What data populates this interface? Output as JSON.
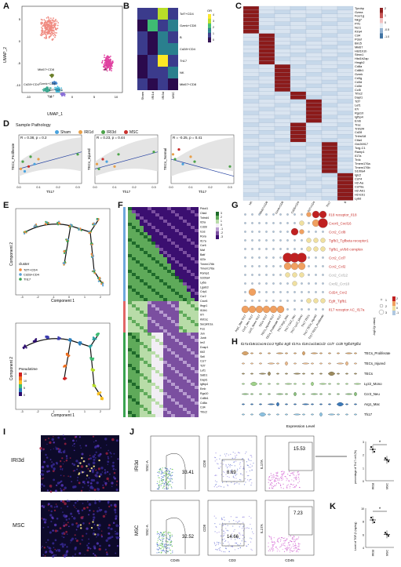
{
  "panel_letters": [
    "A",
    "B",
    "C",
    "D",
    "E",
    "F",
    "G",
    "H",
    "I",
    "J",
    "K"
  ],
  "A": {
    "xlabel": "UMAP_1",
    "ylabel": "UMAP_2",
    "xticks": [
      "-10",
      "-5",
      "0",
      "5",
      "10"
    ],
    "yticks": [
      "-10",
      "-5",
      "0",
      "5"
    ],
    "clusters": [
      "NK",
      "Mki67+CD8",
      "Cd28+CD4",
      "Gzmk+CD8",
      "B",
      "Tcf7+CD4",
      "Th17"
    ]
  },
  "B": {
    "legend_title": "OR",
    "legend_ticks": [
      "4",
      "3",
      "2",
      "1",
      "0"
    ],
    "rows": [
      "Tcf7+CD4",
      "Gzmk+CD8",
      "B",
      "Cd28+CD4",
      "Th17",
      "NK",
      "Mki67+CD8"
    ],
    "cols": [
      "Sham",
      "IRI1d",
      "IRI3d",
      "MSC"
    ],
    "values": [
      [
        0.6,
        0.6,
        3.0,
        0.6
      ],
      [
        0.2,
        2.4,
        0.4,
        1.2
      ],
      [
        1.0,
        0.2,
        1.8,
        0.6
      ],
      [
        0.6,
        0.3,
        1.6,
        1.2
      ],
      [
        0.2,
        1.0,
        3.8,
        0.6
      ],
      [
        0.2,
        0.6,
        0.6,
        1.6
      ],
      [
        0.4,
        0.2,
        0.6,
        0.3
      ]
    ]
  },
  "C": {
    "legend_ticks": [
      "2",
      "1",
      "0",
      "-0.5",
      "-1.0"
    ],
    "cols": [
      "NK",
      "Mki67+CD8",
      "Gzmk+CD8",
      "Cd28+CD4",
      "Tcf7+CD4",
      "Th17",
      "B"
    ],
    "genes": [
      "Tyrobp",
      "Gzma",
      "Fcer1g",
      "Nkg7",
      "Prf1",
      "Ncr1",
      "Klra4",
      "Cd4",
      "Pclaf",
      "Birc5",
      "Mki67",
      "Hist1h1b",
      "Stmn1",
      "Hist1h2ap",
      "Hmgb2",
      "Cd8a",
      "Cd8b1",
      "Gzmk",
      "Cd3g",
      "Cd3d",
      "Cd3e",
      "Ccl5",
      "Trbc2",
      "Dapl1",
      "Tcf7",
      "Lef1",
      "Il7r",
      "Rgs10",
      "Igfbp4",
      "Emb",
      "Trac",
      "Tnfrsf4",
      "Cd28",
      "Tnfrsf18",
      "Ctla4",
      "Gm26917",
      "Tcrg-C1",
      "Ramp1",
      "Il17a",
      "Trdc",
      "Tmem176a",
      "Tmem176b",
      "S100a4",
      "Iglc2",
      "Cd74",
      "H2-Aa",
      "Cd79a",
      "H2-Ab1",
      "H2-Eb1",
      "Ly6d"
    ],
    "blocks": [
      [
        0,
        7,
        0
      ],
      [
        7,
        15,
        1
      ],
      [
        15,
        22,
        2
      ],
      [
        22,
        24,
        3
      ],
      [
        24,
        30,
        4
      ],
      [
        30,
        35,
        3
      ],
      [
        35,
        43,
        5
      ],
      [
        43,
        50,
        6
      ]
    ]
  },
  "D": {
    "legend_title": "Sample Pathology",
    "groups": [
      {
        "name": "Sham",
        "color": "#4aa3df"
      },
      {
        "name": "IRI1d",
        "color": "#e8a04a"
      },
      {
        "name": "IRI3d",
        "color": "#4da34a"
      },
      {
        "name": "MSC",
        "color": "#c9302c"
      }
    ],
    "xlabel": "Th17",
    "xticks": [
      "0.0",
      "0.1",
      "0.2",
      "0.3"
    ],
    "plots": [
      {
        "stat": "R = 0.38, p = 0.2",
        "ylabel": "TECs_Proliferate",
        "points": [
          [
            0.01,
            0.3,
            1
          ],
          [
            0.02,
            0.45,
            2
          ],
          [
            0.05,
            0.35,
            3
          ],
          [
            0.08,
            0.4,
            0
          ],
          [
            0.1,
            0.5,
            1
          ],
          [
            0.03,
            0.25,
            0
          ],
          [
            0.06,
            0.55,
            2
          ],
          [
            0.3,
            0.6,
            2
          ]
        ]
      },
      {
        "stat": "R = 0.23, p = 0.44",
        "ylabel": "TECs_Injured",
        "points": [
          [
            0.01,
            0.4,
            1
          ],
          [
            0.02,
            0.3,
            2
          ],
          [
            0.04,
            0.5,
            3
          ],
          [
            0.06,
            0.45,
            0
          ],
          [
            0.1,
            0.35,
            1
          ],
          [
            0.12,
            0.6,
            2
          ],
          [
            0.3,
            0.65,
            2
          ]
        ]
      },
      {
        "stat": "R = -0.25, p = 0.41",
        "ylabel": "TECs_Normal",
        "points": [
          [
            0.01,
            0.6,
            1
          ],
          [
            0.02,
            0.5,
            2
          ],
          [
            0.04,
            0.7,
            3
          ],
          [
            0.06,
            0.4,
            0
          ],
          [
            0.1,
            0.55,
            1
          ],
          [
            0.12,
            0.45,
            2
          ],
          [
            0.3,
            0.35,
            2
          ]
        ]
      }
    ]
  },
  "E": {
    "xlabel": "Component 1",
    "ylabel": "Component 2",
    "legend_title": "cluster",
    "clusters": [
      {
        "name": "Tcf7+CD4",
        "color": "#f08a3a"
      },
      {
        "name": "Cd28+CD4",
        "color": "#5aa0d6"
      },
      {
        "name": "Th17",
        "color": "#3aa350"
      }
    ],
    "pseudotime_title": "Pseudotime",
    "pseudotime_ticks": [
      "0",
      "5",
      "10",
      "15"
    ],
    "xticks": [
      "-3",
      "-2",
      "-1",
      "0",
      "1",
      "2"
    ]
  },
  "F": {
    "legend_ticks": [
      "3",
      "2",
      "1",
      "0",
      "-1",
      "-2",
      "-3"
    ],
    "genes": [
      "Pdcd1",
      "Ctla4",
      "Tnfrsf4",
      "Il2ra",
      "Cd28",
      "Icos",
      "Rora",
      "Il17a",
      "Ccr6",
      "Maf",
      "Batf",
      "Il23r",
      "Tmem176b",
      "Tmem176a",
      "Ramp1",
      "S100a4",
      "Ly6a",
      "Lgals3",
      "Crip1",
      "Ccr2",
      "Cxcr6",
      "Ifngr1",
      "Il18r1",
      "Il7r",
      "Klrb1c",
      "Serpinb1a",
      "Fos",
      "Jun",
      "Junb",
      "Ier2",
      "Dusp1",
      "Klf2",
      "Sell",
      "Ccr7",
      "Tcf7",
      "Lef1",
      "Satb1",
      "Dapl1",
      "Igfbp4",
      "Emb",
      "Rgs10",
      "Cd8b1",
      "Cd8a",
      "Cd4",
      "Trbc2"
    ],
    "side_colors": [
      "#6fa8dc",
      "#e06666",
      "#3aa350"
    ]
  },
  "G": {
    "pairs": [
      "Il18 receptor_Il18",
      "Cxcr6_Cxcl16",
      "Ccr2_Ccl8",
      "Tgfb3_Tgfbeta receptor1",
      "Tgfb1_aVb8 complex",
      "Ccr2_Ccl7",
      "Ccr2_Ccl2",
      "Ccr2_Ccl12",
      "Cxcl2_Ccr10",
      "Cd24_Ccr2",
      "Egfr_Tgfb1",
      "Il17 receptor AC_Il17a"
    ],
    "pair_colors": [
      "#c9302c",
      "#c9302c",
      "#c9302c",
      "#c9302c",
      "#c9302c",
      "#c9302c",
      "#c9302c",
      "#999999",
      "#999999",
      "#c9302c",
      "#c9302c",
      "#c9302c"
    ],
    "cols": [
      "Arg1_Mac Th17",
      "Ccr2_Neu Th17",
      "Lyz2_Mono Th17",
      "TECs Th17",
      "TECs_Injured Th17",
      "TECs_Proliferate Th17",
      "Th17 Arg1_Mac",
      "Th17 Ccr2_Neu",
      "Th17 Lyz2_Mono",
      "Th17 TECs",
      "Th17 TECs_Injured",
      "Th17 TECs_Proliferate"
    ],
    "size_legend_title": "-log10(p value)",
    "size_legend": [
      "1",
      "2",
      "3"
    ],
    "color_legend_title": "Scaled exp",
    "color_ticks": [
      "2",
      "1",
      "0",
      "-1"
    ],
    "sizes": [
      [
        0,
        0,
        0,
        0,
        0,
        0,
        0,
        0,
        0,
        1,
        2,
        2
      ],
      [
        0,
        0,
        0,
        0,
        0,
        0,
        0,
        0,
        1,
        0,
        2,
        3
      ],
      [
        0,
        0,
        0,
        0,
        0,
        0,
        0,
        2,
        1,
        0,
        0,
        0
      ],
      [
        0,
        0,
        0,
        0,
        0,
        0,
        0,
        0,
        0,
        1,
        1,
        1
      ],
      [
        0,
        0,
        0,
        0,
        0,
        0,
        0,
        0,
        0,
        1,
        1,
        1
      ],
      [
        0,
        0,
        0,
        0,
        0,
        0,
        3,
        3,
        3,
        0,
        0,
        0
      ],
      [
        0,
        0,
        0,
        0,
        0,
        0,
        2,
        2,
        2,
        0,
        0,
        0
      ],
      [
        0,
        0,
        0,
        0,
        0,
        0,
        1,
        1,
        1,
        0,
        0,
        0
      ],
      [
        0,
        0,
        0,
        0,
        0,
        0,
        0,
        1,
        0,
        0,
        0,
        0
      ],
      [
        0,
        2,
        0,
        0,
        0,
        0,
        0,
        0,
        0,
        0,
        0,
        0
      ],
      [
        0,
        0,
        0,
        0,
        0,
        0,
        0,
        0,
        0,
        1,
        1,
        1
      ],
      [
        2,
        2,
        2,
        2,
        2,
        2,
        0,
        0,
        0,
        0,
        0,
        0
      ]
    ],
    "colors": [
      [
        -1,
        -1,
        -1,
        -1,
        -1,
        -1,
        -1,
        -1,
        -1,
        1,
        2,
        2
      ],
      [
        -1,
        -1,
        -1,
        -1,
        -1,
        -1,
        -1,
        -1,
        0,
        -1,
        1,
        2
      ],
      [
        -1,
        -1,
        -1,
        -1,
        -1,
        -1,
        -1,
        2,
        1,
        -1,
        -1,
        -1
      ],
      [
        -1,
        -1,
        -1,
        -1,
        -1,
        -1,
        -1,
        -1,
        -1,
        0,
        0,
        0
      ],
      [
        -1,
        -1,
        -1,
        -1,
        -1,
        -1,
        -1,
        -1,
        -1,
        0,
        0,
        0
      ],
      [
        -1,
        -1,
        -1,
        -1,
        -1,
        -1,
        2,
        2,
        2,
        -1,
        -1,
        -1
      ],
      [
        -1,
        -1,
        -1,
        -1,
        -1,
        -1,
        1,
        1,
        1,
        -1,
        -1,
        -1
      ],
      [
        -1,
        -1,
        -1,
        -1,
        -1,
        -1,
        0,
        0,
        0,
        -1,
        -1,
        -1
      ],
      [
        -1,
        -1,
        -1,
        -1,
        -1,
        -1,
        -1,
        0,
        -1,
        -1,
        -1,
        -1
      ],
      [
        -1,
        1,
        -1,
        -1,
        -1,
        -1,
        -1,
        -1,
        -1,
        -1,
        -1,
        -1
      ],
      [
        -1,
        -1,
        -1,
        -1,
        -1,
        -1,
        -1,
        -1,
        -1,
        0,
        0,
        0
      ],
      [
        1,
        1,
        1,
        1,
        1,
        1,
        -1,
        -1,
        -1,
        -1,
        -1,
        -1
      ]
    ]
  },
  "H": {
    "genes": [
      "Il17a",
      "Il18r1",
      "Cxcr6",
      "Ccr2",
      "Tgfb1",
      "Egfr",
      "Il17ra",
      "Il18",
      "Cxcl16",
      "Ccl2",
      "Ccl7",
      "Ccl8",
      "Tgfb3",
      "Tgfb1"
    ],
    "cells": [
      "TECs_Proliferate",
      "TECs_Injured",
      "TECs",
      "Lyz2_Mono",
      "Ccr2_Neu",
      "Arg1_Mac",
      "Th17"
    ],
    "cell_colors": [
      "#d6a36a",
      "#e9b98b",
      "#9c8a5d",
      "#9fd18a",
      "#8ac07d",
      "#3b78b8",
      "#8cc1e0"
    ],
    "xlabel": "Expression Level"
  },
  "I": {
    "labels": [
      "IRI3d",
      "MSC"
    ]
  },
  "J": {
    "rows": [
      {
        "sample": "IRI3d",
        "gate1": "33.41",
        "gate2": "8.69",
        "gate3": "15.53"
      },
      {
        "sample": "MSC",
        "gate1": "32.52",
        "gate2": "14.66",
        "gate3": "7.23"
      }
    ],
    "axis1_y": "SSC-A",
    "axis1_x": "CD45",
    "axis2_y": "CD8",
    "axis2_x": "CD3",
    "axis3_y": "IL17A",
    "axis3_x": "CD45",
    "bar_ylabel": "percentage of Th17 cell (%)",
    "bar_categories": [
      "IRI3d",
      "MSC"
    ],
    "bar_sig": "*",
    "bar_yticks": [
      "3",
      "2",
      "1",
      "0"
    ]
  },
  "K": {
    "ylabel": "Level of TGF-β (ng/mg)",
    "categories": [
      "IRI3d",
      "MSC"
    ],
    "sig": "*",
    "yticks": [
      "10",
      "8",
      "6",
      "4"
    ]
  },
  "chart_data": [
    {
      "type": "heatmap",
      "title": "",
      "rows": [
        "Tcf7+CD4",
        "Gzmk+CD8",
        "B",
        "Cd28+CD4",
        "Th17",
        "NK",
        "Mki67+CD8"
      ],
      "cols": [
        "Sham",
        "IRI1d",
        "IRI3d",
        "MSC"
      ],
      "values": [
        [
          0.6,
          0.6,
          3.0,
          0.6
        ],
        [
          0.2,
          2.4,
          0.4,
          1.2
        ],
        [
          1.0,
          0.2,
          1.8,
          0.6
        ],
        [
          0.6,
          0.3,
          1.6,
          1.2
        ],
        [
          0.2,
          1.0,
          3.8,
          0.6
        ],
        [
          0.2,
          0.6,
          0.6,
          1.6
        ],
        [
          0.4,
          0.2,
          0.6,
          0.3
        ]
      ]
    },
    {
      "type": "scatter",
      "xlabel": "Th17",
      "series": [
        {
          "name": "TECs_Proliferate",
          "x": [
            0.01,
            0.02,
            0.05,
            0.08,
            0.1,
            0.03,
            0.06,
            0.3
          ],
          "y": [
            0.3,
            0.45,
            0.35,
            0.4,
            0.5,
            0.25,
            0.55,
            0.6
          ]
        },
        {
          "name": "TECs_Injured",
          "x": [
            0.01,
            0.02,
            0.04,
            0.06,
            0.1,
            0.12,
            0.3
          ],
          "y": [
            0.4,
            0.3,
            0.5,
            0.45,
            0.35,
            0.6,
            0.65
          ]
        },
        {
          "name": "TECs_Normal",
          "x": [
            0.01,
            0.02,
            0.04,
            0.06,
            0.1,
            0.12,
            0.3
          ],
          "y": [
            0.6,
            0.5,
            0.7,
            0.4,
            0.55,
            0.45,
            0.35
          ]
        }
      ]
    },
    {
      "type": "bar",
      "title": "",
      "categories": [
        "IRI3d",
        "MSC"
      ],
      "values": [
        2.4,
        1.6
      ],
      "ylabel": "percentage of Th17 cell (%)"
    },
    {
      "type": "bar",
      "title": "",
      "categories": [
        "IRI3d",
        "MSC"
      ],
      "values": [
        8.2,
        6.0
      ],
      "ylabel": "Level of TGF-β (ng/mg)"
    }
  ]
}
